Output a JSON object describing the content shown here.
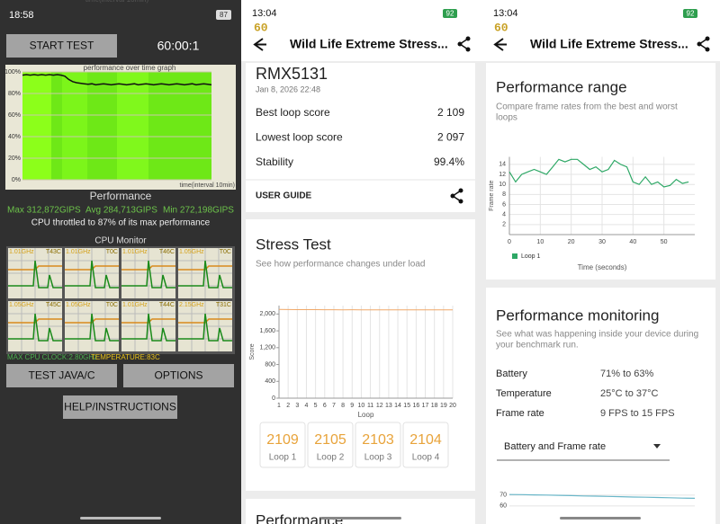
{
  "left": {
    "status_time": "18:58",
    "battery": "87",
    "start_button": "START TEST",
    "timer": "60:00:1",
    "graph": {
      "type": "line",
      "title": "performance over time graph",
      "xlabel": "time(interval 10min)",
      "ylim": [
        0,
        100
      ],
      "yticks": [
        {
          "value": 100,
          "label": "100%"
        },
        {
          "value": 80,
          "label": "80%"
        },
        {
          "value": 60,
          "label": "60%"
        },
        {
          "value": 40,
          "label": "40%"
        },
        {
          "value": 20,
          "label": "20%"
        },
        {
          "value": 0,
          "label": "0%"
        }
      ],
      "grid": true,
      "color": "#111111",
      "values": [
        97,
        97.5,
        97,
        97.5,
        97,
        97.5,
        97,
        97.5,
        97,
        97.5,
        97,
        96,
        93,
        91,
        90,
        89.5,
        89,
        88.5,
        89,
        88,
        88.5,
        89,
        88.5,
        88,
        88.5,
        89,
        88.5,
        88,
        88.5,
        89,
        88,
        88.5,
        89,
        88.5,
        88,
        88.5,
        89,
        88.5,
        88,
        88.5,
        89,
        88.5,
        88,
        88.5,
        89,
        88,
        88.5,
        89,
        88.5,
        88
      ]
    },
    "performance_heading": "Performance",
    "max": "Max 312,872GIPS",
    "avg": "Avg 284,713GIPS",
    "min": "Min 272,198GIPS",
    "throttle_note": "CPU throttled to 87% of its max performance",
    "cpu_monitor_title": "CPU Monitor",
    "cores": [
      {
        "freq": "1.01GHz",
        "temp": "T43C"
      },
      {
        "freq": "1.01GHz",
        "temp": "T0C"
      },
      {
        "freq": "1.01GHz",
        "temp": "T46C"
      },
      {
        "freq": "1.05GHz",
        "temp": "T0C"
      },
      {
        "freq": "1.05GHz",
        "temp": "T45C"
      },
      {
        "freq": "1.05GHz",
        "temp": "T0C"
      },
      {
        "freq": "1.01GHz",
        "temp": "T44C"
      },
      {
        "freq": "2.15GHz",
        "temp": "T31C"
      }
    ],
    "max_clock": "MAX CPU CLOCK:2.80GHz",
    "temperature": "TEMPERATURE:83C",
    "test_button": "TEST JAVA/C",
    "options_button": "OPTIONS",
    "help_button": "HELP/INSTRUCTIONS"
  },
  "middle": {
    "status_time": "13:04",
    "battery": "92",
    "logo": "60",
    "title": "Wild Life Extreme Stress...",
    "device": "RMX5131",
    "date": "Jan 8, 2026 22:48",
    "stats": [
      {
        "label": "Best loop score",
        "value": "2 109"
      },
      {
        "label": "Lowest loop score",
        "value": "2 097"
      },
      {
        "label": "Stability",
        "value": "99.4%"
      }
    ],
    "user_guide": "USER GUIDE",
    "stress_title": "Stress Test",
    "stress_subtitle": "See how performance changes under load",
    "chart": {
      "type": "line",
      "ylabel": "Score",
      "xlabel": "Loop",
      "color": "#f0a868",
      "x": [
        1,
        2,
        3,
        4,
        5,
        6,
        7,
        8,
        9,
        10,
        11,
        12,
        13,
        14,
        15,
        16,
        17,
        18,
        19,
        20
      ],
      "xlim": [
        1,
        20
      ],
      "xticks": [
        1,
        2,
        3,
        4,
        5,
        6,
        7,
        8,
        9,
        10,
        11,
        12,
        13,
        14,
        15,
        16,
        17,
        18,
        19,
        20
      ],
      "ylim": [
        0,
        2200
      ],
      "yticks": [
        0,
        400,
        800,
        {
          "value": 1200,
          "label": "1,200"
        },
        {
          "value": 1600,
          "label": "1,600"
        },
        {
          "value": 2000,
          "label": "2,000"
        }
      ],
      "grid": "x",
      "values": [
        2109,
        2105,
        2103,
        2104,
        2103,
        2102,
        2101,
        2100,
        2101,
        2100,
        2099,
        2100,
        2098,
        2099,
        2098,
        2097,
        2098,
        2099,
        2098,
        2097
      ]
    },
    "loop_cards": [
      {
        "score": 2109,
        "label": "Loop 1"
      },
      {
        "score": 2105,
        "label": "Loop 2"
      },
      {
        "score": 2103,
        "label": "Loop 3"
      },
      {
        "score": 2104,
        "label": "Loop 4"
      }
    ],
    "next_card_title": "Performance"
  },
  "right": {
    "status_time": "13:04",
    "battery": "92",
    "logo": "60",
    "title": "Wild Life Extreme Stress...",
    "range_title": "Performance range",
    "range_subtitle": [
      "Compare frame rates from the best and worst",
      "loops"
    ],
    "chart": {
      "type": "line",
      "ylabel": "Frame rate",
      "xlabel": "Time (seconds)",
      "legend": "bottom-left",
      "xlim": [
        0,
        60
      ],
      "xticks": [
        0,
        10,
        20,
        30,
        40,
        50
      ],
      "ylim": [
        0,
        15.5
      ],
      "yticks": [
        2,
        4,
        6,
        8,
        10,
        12,
        14
      ],
      "grid": true,
      "x": [
        0,
        2,
        4,
        6,
        8,
        10,
        12,
        14,
        16,
        18,
        20,
        22,
        24,
        26,
        28,
        30,
        32,
        34,
        36,
        38,
        40,
        42,
        44,
        46,
        48,
        50,
        52,
        54,
        56,
        58
      ],
      "series": [
        {
          "name": "Loop 1",
          "color": "#2ea866",
          "values": [
            12.5,
            10.5,
            12,
            12.5,
            13,
            12.5,
            12,
            13.5,
            15,
            14.5,
            15,
            15,
            14,
            13,
            13.5,
            12.5,
            13,
            14.8,
            14,
            13.5,
            10.5,
            10,
            11.5,
            10,
            10.5,
            9.5,
            9.8,
            11,
            10.2,
            10.5
          ]
        }
      ]
    },
    "monitoring_title": "Performance monitoring",
    "monitoring_subtitle": [
      "See what was happening inside your device during",
      "your benchmark run."
    ],
    "rows": [
      {
        "label": "Battery",
        "value": "71% to 63%"
      },
      {
        "label": "Temperature",
        "value": "25°C to 37°C"
      },
      {
        "label": "Frame rate",
        "value": "9 FPS to 15 FPS"
      }
    ],
    "dropdown": "Battery and Frame rate",
    "mini_chart": {
      "type": "line",
      "color": "#6ab7c9",
      "ylim": [
        52,
        74
      ],
      "yticks": [
        60,
        70
      ],
      "grid": true,
      "values": [
        70.5,
        70.4,
        70.2,
        70,
        69.8,
        69.5,
        69.2,
        69,
        68.8,
        68.5,
        68.2,
        68,
        67.8,
        67.5,
        67.2,
        67
      ]
    }
  }
}
